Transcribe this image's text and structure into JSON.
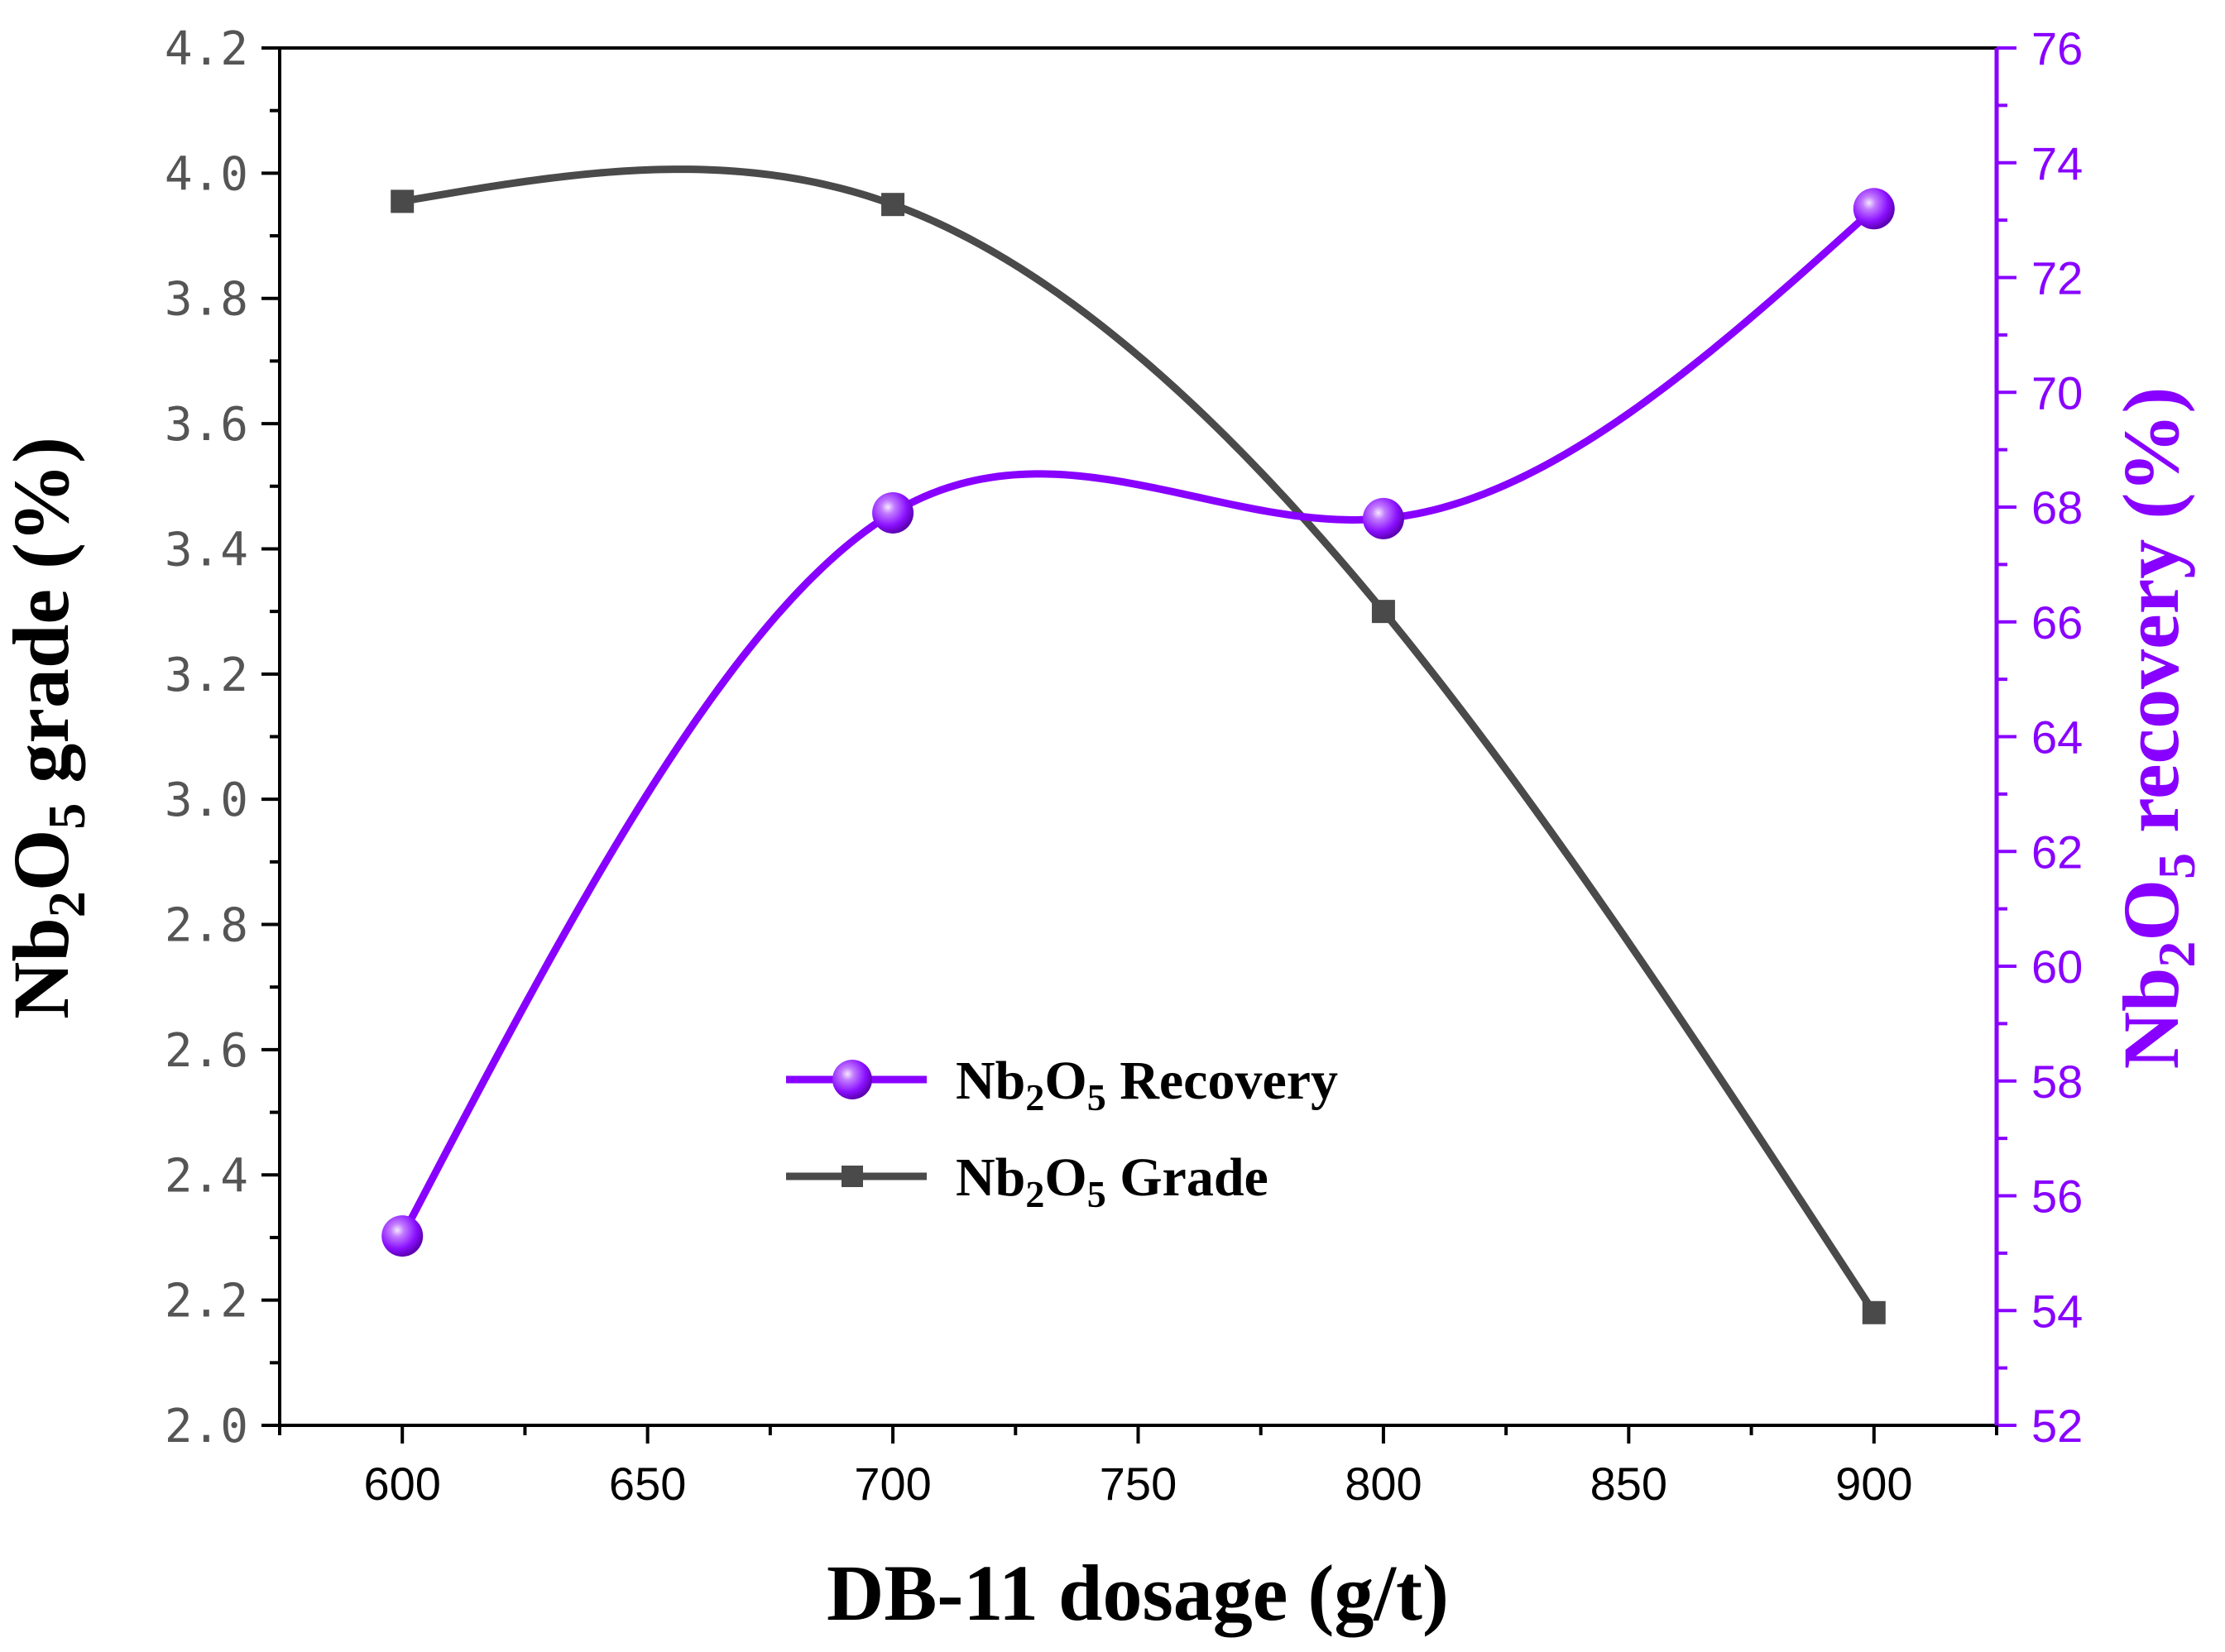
{
  "chart_data": {
    "type": "line",
    "title": "",
    "xlabel": "DB-11 dosage (g/t)",
    "ylabel_left": {
      "base": "Nb",
      "sub1": "2",
      "mid": "O",
      "sub2": "5",
      "rest": " grade (%)"
    },
    "ylabel_right": {
      "base": "Nb",
      "sub1": "2",
      "mid": "O",
      "sub2": "5",
      "rest": " recovery (%)"
    },
    "x": [
      600,
      700,
      800,
      900
    ],
    "xlim": [
      575,
      925
    ],
    "xticks": [
      "600",
      "650",
      "700",
      "750",
      "800",
      "850",
      "900"
    ],
    "ylim_left": [
      2.0,
      4.2
    ],
    "yticks_left": [
      "2.0",
      "2.2",
      "2.4",
      "2.6",
      "2.8",
      "3.0",
      "3.2",
      "3.4",
      "3.6",
      "3.8",
      "4.0",
      "4.2"
    ],
    "ylim_right": [
      52,
      76
    ],
    "yticks_right": [
      "52",
      "54",
      "56",
      "58",
      "60",
      "62",
      "64",
      "66",
      "68",
      "70",
      "72",
      "74",
      "76"
    ],
    "series": [
      {
        "name": "Nb2O5 Recovery",
        "legend": {
          "base": "Nb",
          "sub1": "2",
          "mid": "O",
          "sub2": "5",
          "rest": " Recovery"
        },
        "axis": "right",
        "marker": "sphere",
        "color": "#8800ff",
        "values": [
          55.3,
          67.9,
          67.8,
          73.2
        ]
      },
      {
        "name": "Nb2O5 Grade",
        "legend": {
          "base": "Nb",
          "sub1": "2",
          "mid": "O",
          "sub2": "5",
          "rest": " Grade"
        },
        "axis": "left",
        "marker": "square",
        "color": "#4a4a4a",
        "values": [
          3.955,
          3.95,
          3.3,
          2.18
        ]
      }
    ],
    "legend_position": "center-lower"
  }
}
